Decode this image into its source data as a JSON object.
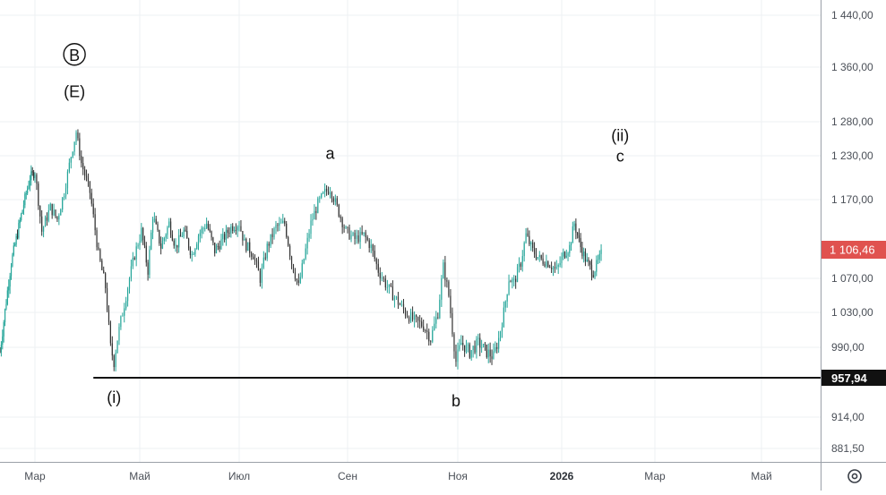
{
  "chart_data": {
    "type": "candlestick",
    "y_axis": {
      "ticks": [
        "1 440,00",
        "1 360,00",
        "1 280,00",
        "1 230,00",
        "1 170,00",
        "1 070,00",
        "1 030,00",
        "990,00",
        "914,00",
        "881,50"
      ],
      "tick_values": [
        1440,
        1360,
        1280,
        1230,
        1170,
        1070,
        1030,
        990,
        914,
        881.5
      ],
      "range": [
        860,
        1470
      ]
    },
    "x_axis": {
      "labels": [
        "Мар",
        "Май",
        "Июл",
        "Сен",
        "Ноя",
        "2026",
        "Мар",
        "Май"
      ],
      "label_dates": [
        "2025-03-01",
        "2025-05-01",
        "2025-07-01",
        "2025-09-01",
        "2025-11-01",
        "2026-01-01",
        "2026-03-01",
        "2026-05-01"
      ],
      "bold_label": "2026"
    },
    "price_series": [
      [
        "2025-02-01",
        985
      ],
      [
        "2025-02-10",
        1090
      ],
      [
        "2025-02-18",
        1150
      ],
      [
        "2025-02-25",
        1200
      ],
      [
        "2025-03-01",
        1208
      ],
      [
        "2025-03-05",
        1130
      ],
      [
        "2025-03-10",
        1160
      ],
      [
        "2025-03-14",
        1145
      ],
      [
        "2025-03-18",
        1180
      ],
      [
        "2025-03-22",
        1230
      ],
      [
        "2025-03-25",
        1265
      ],
      [
        "2025-03-28",
        1220
      ],
      [
        "2025-04-02",
        1180
      ],
      [
        "2025-04-07",
        1100
      ],
      [
        "2025-04-11",
        1060
      ],
      [
        "2025-04-14",
        990
      ],
      [
        "2025-04-16",
        975
      ],
      [
        "2025-04-18",
        1000
      ],
      [
        "2025-04-23",
        1050
      ],
      [
        "2025-04-28",
        1100
      ],
      [
        "2025-05-02",
        1130
      ],
      [
        "2025-05-06",
        1080
      ],
      [
        "2025-05-09",
        1150
      ],
      [
        "2025-05-14",
        1110
      ],
      [
        "2025-05-19",
        1140
      ],
      [
        "2025-05-23",
        1110
      ],
      [
        "2025-05-28",
        1130
      ],
      [
        "2025-06-02",
        1100
      ],
      [
        "2025-06-06",
        1125
      ],
      [
        "2025-06-11",
        1140
      ],
      [
        "2025-06-16",
        1105
      ],
      [
        "2025-06-21",
        1120
      ],
      [
        "2025-06-26",
        1135
      ],
      [
        "2025-07-01",
        1140
      ],
      [
        "2025-07-04",
        1115
      ],
      [
        "2025-07-09",
        1100
      ],
      [
        "2025-07-13",
        1070
      ],
      [
        "2025-07-17",
        1110
      ],
      [
        "2025-07-22",
        1135
      ],
      [
        "2025-07-27",
        1140
      ],
      [
        "2025-07-31",
        1090
      ],
      [
        "2025-08-04",
        1060
      ],
      [
        "2025-08-07",
        1095
      ],
      [
        "2025-08-11",
        1140
      ],
      [
        "2025-08-15",
        1165
      ],
      [
        "2025-08-19",
        1180
      ],
      [
        "2025-08-22",
        1185
      ],
      [
        "2025-08-26",
        1160
      ],
      [
        "2025-08-31",
        1130
      ],
      [
        "2025-09-05",
        1120
      ],
      [
        "2025-09-10",
        1125
      ],
      [
        "2025-09-14",
        1110
      ],
      [
        "2025-09-18",
        1080
      ],
      [
        "2025-09-23",
        1060
      ],
      [
        "2025-09-28",
        1045
      ],
      [
        "2025-10-03",
        1030
      ],
      [
        "2025-10-08",
        1020
      ],
      [
        "2025-10-13",
        1015
      ],
      [
        "2025-10-17",
        1000
      ],
      [
        "2025-10-21",
        1030
      ],
      [
        "2025-10-24",
        1085
      ],
      [
        "2025-10-27",
        1050
      ],
      [
        "2025-10-29",
        1010
      ],
      [
        "2025-10-31",
        975
      ],
      [
        "2025-11-03",
        995
      ],
      [
        "2025-11-08",
        985
      ],
      [
        "2025-11-13",
        995
      ],
      [
        "2025-11-18",
        985
      ],
      [
        "2025-11-22",
        980
      ],
      [
        "2025-11-25",
        1000
      ],
      [
        "2025-11-28",
        1030
      ],
      [
        "2025-12-01",
        1070
      ],
      [
        "2025-12-04",
        1065
      ],
      [
        "2025-12-08",
        1090
      ],
      [
        "2025-12-11",
        1125
      ],
      [
        "2025-12-15",
        1105
      ],
      [
        "2025-12-19",
        1095
      ],
      [
        "2025-12-24",
        1090
      ],
      [
        "2025-12-29",
        1080
      ],
      [
        "2026-01-02",
        1100
      ],
      [
        "2026-01-06",
        1110
      ],
      [
        "2026-01-09",
        1140
      ],
      [
        "2026-01-13",
        1110
      ],
      [
        "2026-01-17",
        1090
      ],
      [
        "2026-01-21",
        1078
      ],
      [
        "2026-01-25",
        1095
      ],
      [
        "2026-01-27",
        1106.46
      ]
    ],
    "horizontal_line": {
      "value": 957.94,
      "label": "957,94",
      "start_date": "2025-04-04"
    },
    "last_price": {
      "value": 1106.46,
      "label": "1 106,46"
    },
    "wave_labels": [
      {
        "text": "B",
        "circled": true,
        "date": "2025-03-24",
        "value": 1370
      },
      {
        "text": "(E)",
        "date": "2025-03-24",
        "value": 1316
      },
      {
        "text": "a",
        "date": "2025-08-22",
        "value": 1226
      },
      {
        "text": "(i)",
        "date": "2025-04-16",
        "value": 930
      },
      {
        "text": "b",
        "date": "2025-10-31",
        "value": 926
      },
      {
        "text": "(ii)",
        "date": "2026-02-07",
        "value": 1252
      },
      {
        "text": "c",
        "date": "2026-02-07",
        "value": 1222
      }
    ],
    "colors": {
      "up": "#26a69a",
      "down": "#333333",
      "last_price_badge": "#e0524f",
      "level_badge": "#111111",
      "level_line": "#111111"
    }
  },
  "ui": {
    "settings_icon": "settings-icon"
  }
}
